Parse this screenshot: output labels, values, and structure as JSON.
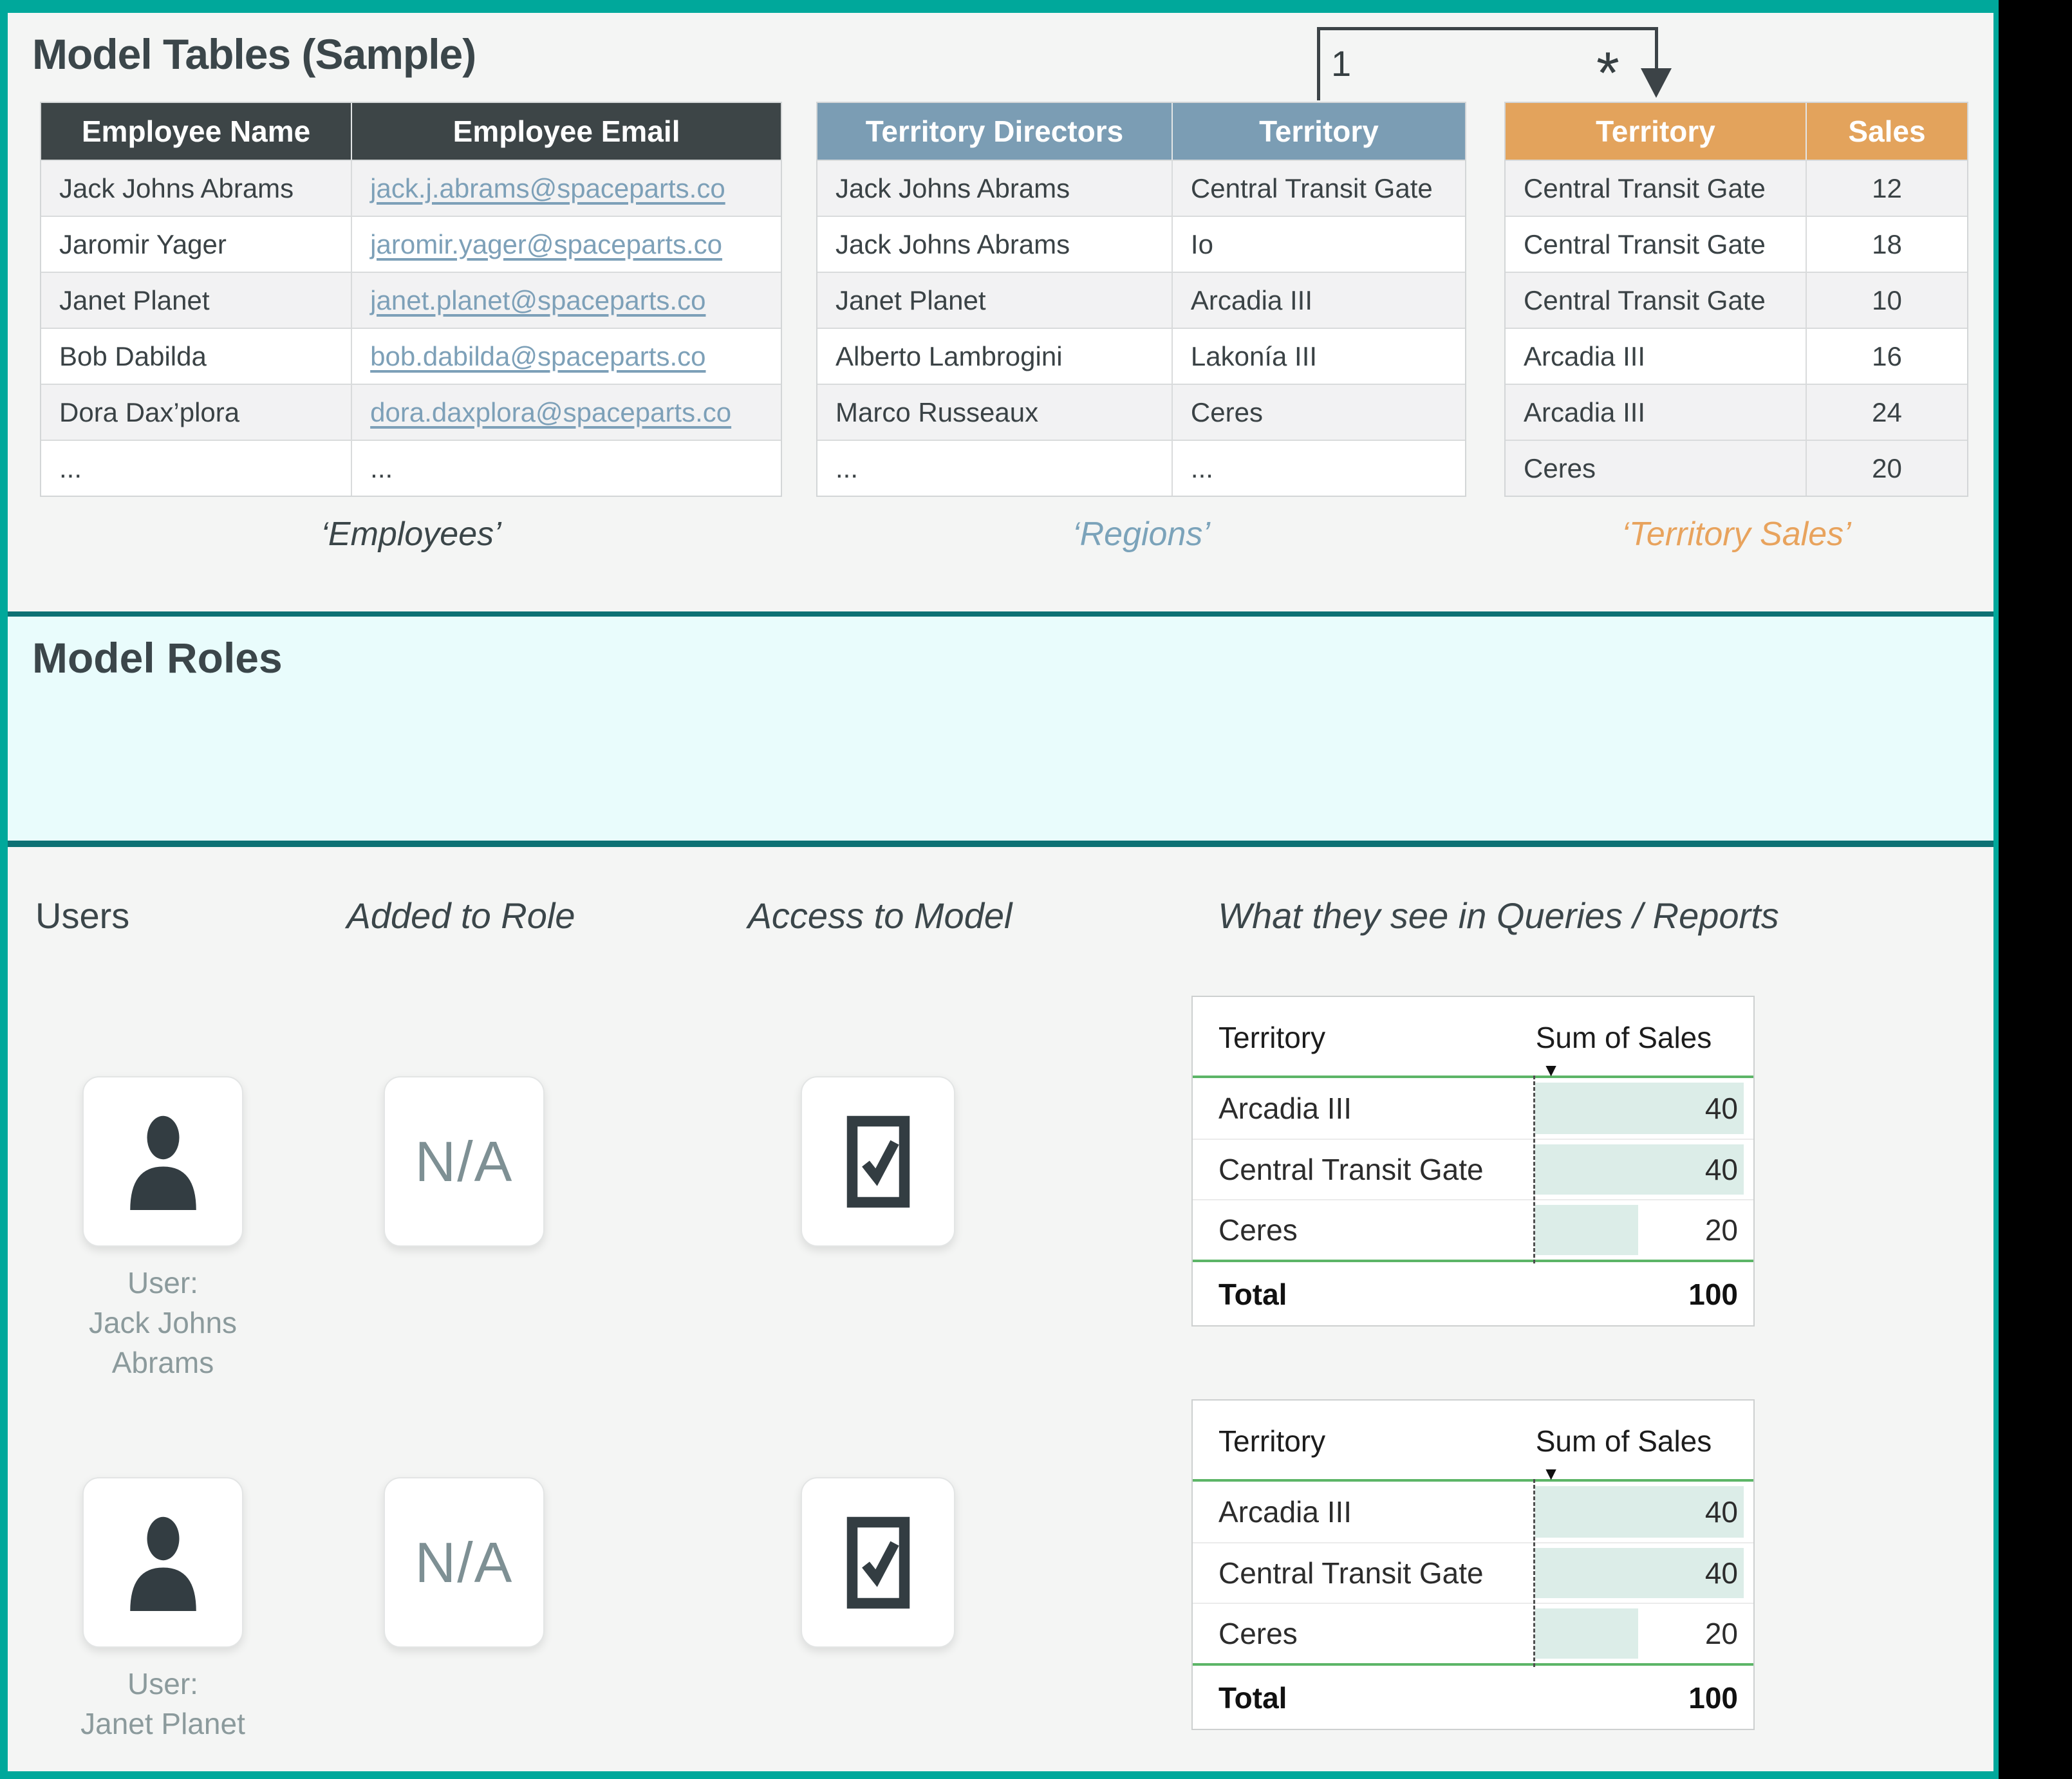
{
  "colors": {
    "frame_accent": "#00a89b",
    "section_divider": "#0d7174",
    "roles_background": "#e9fcfc",
    "employees_header": "#3d4547",
    "regions_header": "#7b9db4",
    "sales_header": "#e3a35c",
    "email_link": "#7da0b8",
    "report_green": "#5cb567",
    "report_bar_fill": "#dcede8"
  },
  "model_tables": {
    "title": "Model Tables (Sample)",
    "employees": {
      "caption": "‘Employees’",
      "columns": [
        "Employee Name",
        "Employee Email"
      ],
      "rows": [
        [
          "Jack Johns Abrams",
          "jack.j.abrams@spaceparts.co"
        ],
        [
          "Jaromir Yager",
          "jaromir.yager@spaceparts.co"
        ],
        [
          "Janet Planet",
          "janet.planet@spaceparts.co"
        ],
        [
          "Bob Dabilda",
          "bob.dabilda@spaceparts.co"
        ],
        [
          "Dora Dax’plora",
          "dora.daxplora@spaceparts.co"
        ],
        [
          "...",
          "..."
        ]
      ]
    },
    "regions": {
      "caption": "‘Regions’",
      "columns": [
        "Territory Directors",
        "Territory"
      ],
      "rows": [
        [
          "Jack Johns Abrams",
          "Central Transit Gate"
        ],
        [
          "Jack Johns Abrams",
          "Io"
        ],
        [
          "Janet Planet",
          "Arcadia III"
        ],
        [
          "Alberto Lambrogini",
          "Lakonía III"
        ],
        [
          "Marco Russeaux",
          "Ceres"
        ],
        [
          "...",
          "..."
        ]
      ]
    },
    "territory_sales": {
      "caption": "‘Territory Sales’",
      "columns": [
        "Territory",
        "Sales"
      ],
      "rows": [
        [
          "Central Transit Gate",
          "12"
        ],
        [
          "Central Transit Gate",
          "18"
        ],
        [
          "Central Transit Gate",
          "10"
        ],
        [
          "Arcadia III",
          "16"
        ],
        [
          "Arcadia III",
          "24"
        ],
        [
          "Ceres",
          "20"
        ]
      ]
    },
    "relationship": {
      "one_label": "1",
      "many_label": "*"
    }
  },
  "model_roles": {
    "title": "Model Roles"
  },
  "access_matrix": {
    "col_headers": {
      "users": "Users",
      "added_to_role": "Added to Role",
      "access_to_model": "Access to Model",
      "reports": "What they see in Queries / Reports"
    },
    "rows": [
      {
        "user_label": "User:\nJack Johns\nAbrams",
        "added_to_role": "N/A",
        "access_icon": "checkbox-checked"
      },
      {
        "user_label": "User:\nJanet Planet",
        "added_to_role": "N/A",
        "access_icon": "checkbox-checked"
      }
    ],
    "report": {
      "columns": [
        "Territory",
        "Sum of Sales"
      ],
      "sort_icon": "▼",
      "rows": [
        {
          "territory": "Arcadia III",
          "value": "40",
          "bar_pct": 97
        },
        {
          "territory": "Central Transit Gate",
          "value": "40",
          "bar_pct": 97
        },
        {
          "territory": "Ceres",
          "value": "20",
          "bar_pct": 48
        }
      ],
      "total_label": "Total",
      "total_value": "100"
    }
  }
}
